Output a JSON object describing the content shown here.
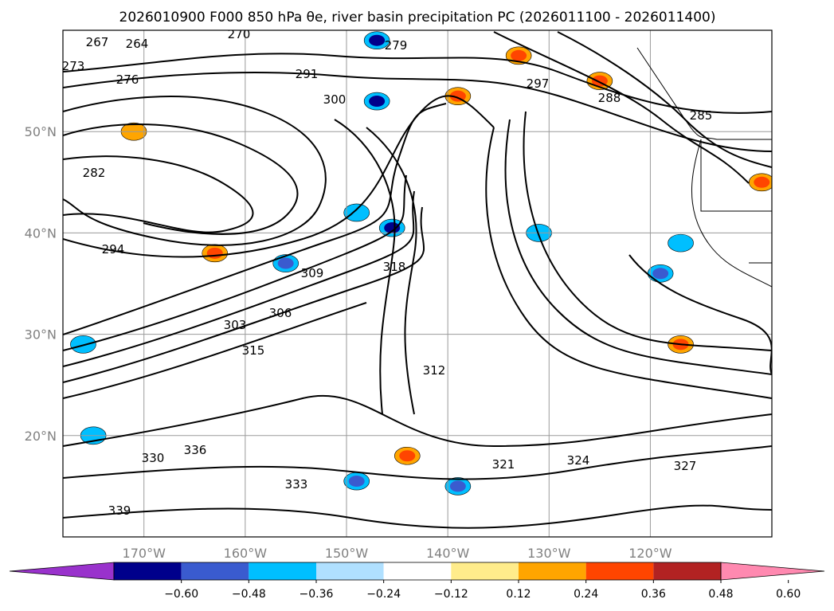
{
  "chart_data": {
    "type": "contour-map",
    "title": "2026010900 F000 850 hPa θe, river basin precipitation PC (2026011100 - 2026011400)",
    "x_ticks": [
      "170°W",
      "160°W",
      "150°W",
      "140°W",
      "130°W",
      "120°W"
    ],
    "y_ticks": [
      "50°N",
      "40°N",
      "30°N",
      "20°N"
    ],
    "lon_range": [
      -178,
      -108
    ],
    "lat_range": [
      10,
      60
    ],
    "grid": true,
    "contour_variable": "850 hPa equivalent potential temperature (K)",
    "contour_labels": [
      "264",
      "267",
      "270",
      "273",
      "276",
      "279",
      "282",
      "285",
      "288",
      "291",
      "294",
      "297",
      "300",
      "303",
      "306",
      "309",
      "312",
      "315",
      "318",
      "321",
      "324",
      "327",
      "330",
      "333",
      "336",
      "339"
    ],
    "colorbar": {
      "ticks": [
        "−0.60",
        "−0.48",
        "−0.36",
        "−0.24",
        "−0.12",
        "0.12",
        "0.24",
        "0.36",
        "0.48",
        "0.60"
      ],
      "levels": [
        -0.6,
        -0.48,
        -0.36,
        -0.24,
        -0.12,
        0.12,
        0.24,
        0.36,
        0.48,
        0.6
      ],
      "colors": [
        "#9932cc",
        "#00008b",
        "#3a5bcf",
        "#00bfff",
        "#b0e0ff",
        "#ffffff",
        "#ffec8b",
        "#ffa500",
        "#ff4500",
        "#b22222",
        "#ff89b0"
      ],
      "extend": "both"
    },
    "precip_pc_regions": [
      {
        "lon": -145.5,
        "lat": 40.5,
        "value": -0.5
      },
      {
        "lon": -149,
        "lat": 42,
        "value": -0.3
      },
      {
        "lon": -119,
        "lat": 36,
        "value": -0.45
      },
      {
        "lon": -117,
        "lat": 39,
        "value": -0.3
      },
      {
        "lon": -176,
        "lat": 29,
        "value": -0.35
      },
      {
        "lon": -147,
        "lat": 53,
        "value": -0.5
      },
      {
        "lon": -156,
        "lat": 37,
        "value": -0.4
      },
      {
        "lon": -131,
        "lat": 40,
        "value": -0.3
      },
      {
        "lon": -149,
        "lat": 15.5,
        "value": -0.4
      },
      {
        "lon": -139,
        "lat": 15,
        "value": -0.4
      },
      {
        "lon": -175,
        "lat": 20,
        "value": -0.3
      },
      {
        "lon": -144,
        "lat": 18,
        "value": 0.45
      },
      {
        "lon": -139,
        "lat": 53.5,
        "value": 0.4
      },
      {
        "lon": -133,
        "lat": 57.5,
        "value": 0.45
      },
      {
        "lon": -125,
        "lat": 55,
        "value": 0.4
      },
      {
        "lon": -163,
        "lat": 38,
        "value": 0.4
      },
      {
        "lon": -171,
        "lat": 50,
        "value": 0.35
      },
      {
        "lon": -117,
        "lat": 29,
        "value": 0.38
      },
      {
        "lon": -147,
        "lat": 59,
        "value": -0.5
      },
      {
        "lon": -109,
        "lat": 45,
        "value": 0.45
      }
    ]
  }
}
